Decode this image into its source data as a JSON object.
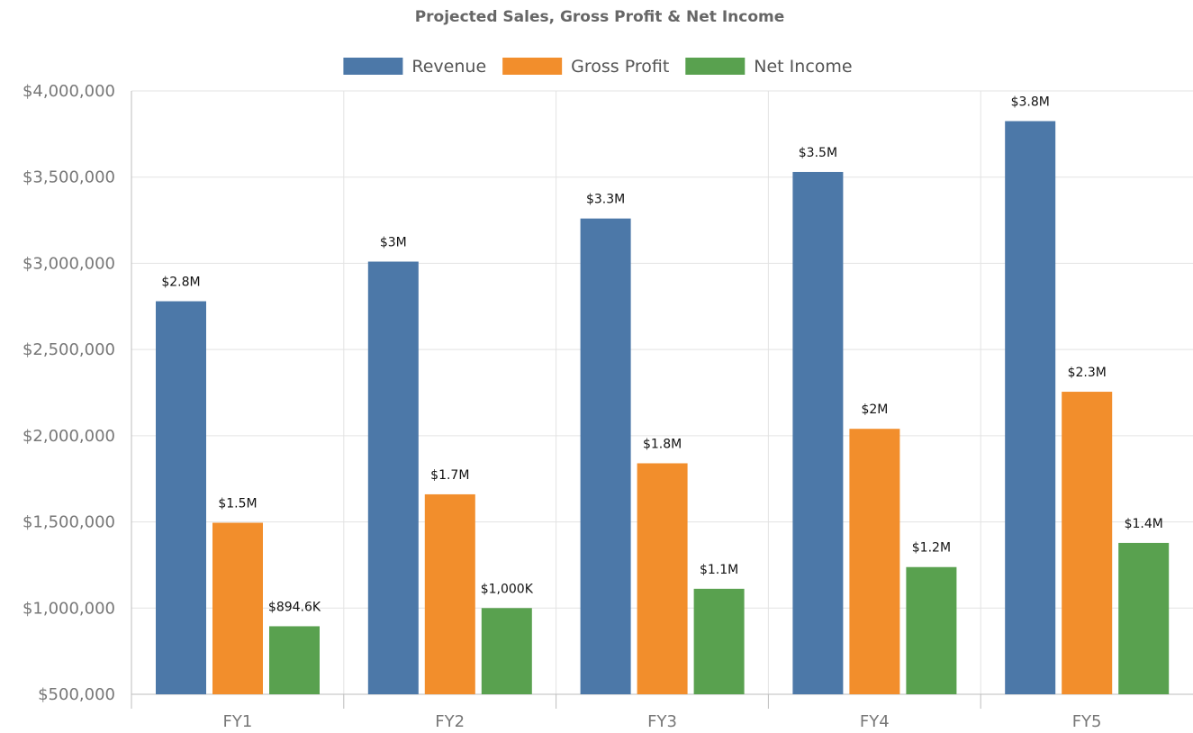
{
  "chart_data": {
    "type": "bar",
    "title": "Projected Sales, Gross Profit & Net Income",
    "xlabel": "",
    "ylabel": "",
    "categories": [
      "FY1",
      "FY2",
      "FY3",
      "FY4",
      "FY5"
    ],
    "series": [
      {
        "name": "Revenue",
        "color": "#4c78a8",
        "values": [
          2780000,
          3010000,
          3260000,
          3530000,
          3825000
        ],
        "labels": [
          "$2.8M",
          "$3M",
          "$3.3M",
          "$3.5M",
          "$3.8M"
        ]
      },
      {
        "name": "Gross Profit",
        "color": "#f28e2c",
        "values": [
          1495000,
          1660000,
          1840000,
          2040000,
          2255000
        ],
        "labels": [
          "$1.5M",
          "$1.7M",
          "$1.8M",
          "$2M",
          "$2.3M"
        ]
      },
      {
        "name": "Net Income",
        "color": "#59a14f",
        "values": [
          894600,
          1000000,
          1112000,
          1238000,
          1378000
        ],
        "labels": [
          "$894.6K",
          "$1,000K",
          "$1.1M",
          "$1.2M",
          "$1.4M"
        ]
      }
    ],
    "ylim": [
      500000,
      4000000
    ],
    "y_ticks": [
      500000,
      1000000,
      1500000,
      2000000,
      2500000,
      3000000,
      3500000,
      4000000
    ],
    "y_tick_labels": [
      "$500,000",
      "$1,000,000",
      "$1,500,000",
      "$2,000,000",
      "$2,500,000",
      "$3,000,000",
      "$3,500,000",
      "$4,000,000"
    ],
    "grid": true,
    "legend_position": "top-center"
  }
}
